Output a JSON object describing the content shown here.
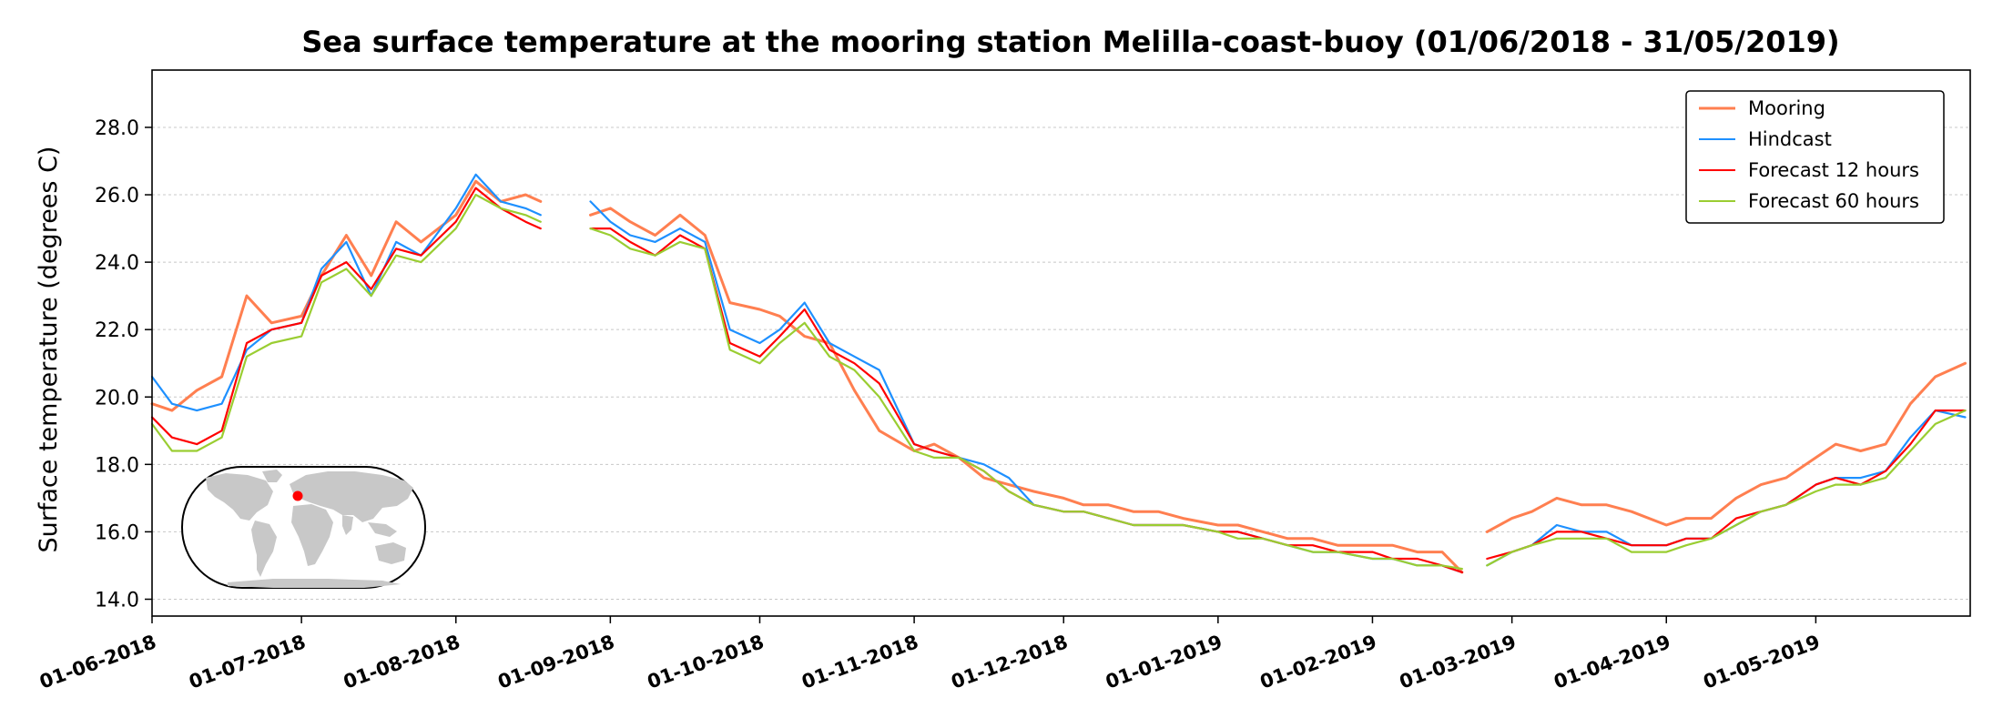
{
  "chart_data": {
    "type": "line",
    "title": "Sea surface temperature at the mooring station Melilla-coast-buoy (01/06/2018 - 31/05/2019)",
    "xlabel": "",
    "ylabel": "Surface temperature (degrees C)",
    "ylim": [
      13.5,
      29.7
    ],
    "xlim": [
      "2018-06-01",
      "2019-06-01"
    ],
    "y_ticks": [
      "14.0",
      "16.0",
      "18.0",
      "20.0",
      "22.0",
      "24.0",
      "26.0",
      "28.0"
    ],
    "x_ticks": [
      "01-06-2018",
      "01-07-2018",
      "01-08-2018",
      "01-09-2018",
      "01-10-2018",
      "01-11-2018",
      "01-12-2018",
      "01-01-2019",
      "01-02-2019",
      "01-03-2019",
      "01-04-2019",
      "01-05-2019"
    ],
    "grid": "horizontal",
    "legend_position": "top-right",
    "inset_map": "world map with red marker at Melilla",
    "series": [
      {
        "name": "Mooring",
        "color": "#ff7f50",
        "x": [
          "2018-06-01",
          "2018-06-05",
          "2018-06-10",
          "2018-06-15",
          "2018-06-20",
          "2018-06-25",
          "2018-07-01",
          "2018-07-05",
          "2018-07-10",
          "2018-07-15",
          "2018-07-20",
          "2018-07-25",
          "2018-08-01",
          "2018-08-05",
          "2018-08-10",
          "2018-08-15",
          "2018-08-18",
          null,
          "2018-08-28",
          "2018-09-01",
          "2018-09-05",
          "2018-09-10",
          "2018-09-15",
          "2018-09-20",
          "2018-09-25",
          "2018-10-01",
          "2018-10-05",
          "2018-10-10",
          "2018-10-15",
          "2018-10-20",
          "2018-10-25",
          "2018-11-01",
          "2018-11-05",
          "2018-11-10",
          "2018-11-15",
          "2018-11-20",
          "2018-11-25",
          "2018-12-01",
          "2018-12-05",
          "2018-12-10",
          "2018-12-15",
          "2018-12-20",
          "2018-12-25",
          "2019-01-01",
          "2019-01-05",
          "2019-01-10",
          "2019-01-15",
          "2019-01-20",
          "2019-01-25",
          "2019-02-01",
          "2019-02-05",
          "2019-02-10",
          "2019-02-15",
          "2019-02-19",
          null,
          "2019-02-24",
          "2019-03-01",
          "2019-03-05",
          "2019-03-10",
          "2019-03-15",
          "2019-03-20",
          "2019-03-25",
          "2019-04-01",
          "2019-04-05",
          "2019-04-10",
          "2019-04-15",
          "2019-04-20",
          "2019-04-25",
          "2019-05-01",
          "2019-05-05",
          "2019-05-10",
          "2019-05-15",
          "2019-05-20",
          "2019-05-25",
          "2019-05-31"
        ],
        "values": [
          19.8,
          19.6,
          20.2,
          20.6,
          23.0,
          22.2,
          22.4,
          23.6,
          24.8,
          23.6,
          25.2,
          24.6,
          25.4,
          26.4,
          25.8,
          26.0,
          25.8,
          null,
          25.4,
          25.6,
          25.2,
          24.8,
          25.4,
          24.8,
          22.8,
          22.6,
          22.4,
          21.8,
          21.6,
          20.2,
          19.0,
          18.4,
          18.6,
          18.2,
          17.6,
          17.4,
          17.2,
          17.0,
          16.8,
          16.8,
          16.6,
          16.6,
          16.4,
          16.2,
          16.2,
          16.0,
          15.8,
          15.8,
          15.6,
          15.6,
          15.6,
          15.4,
          15.4,
          14.8,
          null,
          16.0,
          16.4,
          16.6,
          17.0,
          16.8,
          16.8,
          16.6,
          16.2,
          16.4,
          16.4,
          17.0,
          17.4,
          17.6,
          18.2,
          18.6,
          18.4,
          18.6,
          19.8,
          20.6,
          21.0
        ]
      },
      {
        "name": "Hindcast",
        "color": "#1e90ff",
        "x": [
          "2018-06-01",
          "2018-06-05",
          "2018-06-10",
          "2018-06-15",
          "2018-06-20",
          "2018-06-25",
          "2018-07-01",
          "2018-07-05",
          "2018-07-10",
          "2018-07-15",
          "2018-07-20",
          "2018-07-25",
          "2018-08-01",
          "2018-08-05",
          "2018-08-10",
          "2018-08-15",
          "2018-08-18",
          null,
          "2018-08-28",
          "2018-09-01",
          "2018-09-05",
          "2018-09-10",
          "2018-09-15",
          "2018-09-20",
          "2018-09-25",
          "2018-10-01",
          "2018-10-05",
          "2018-10-10",
          "2018-10-15",
          "2018-10-20",
          "2018-10-25",
          "2018-11-01",
          "2018-11-05",
          "2018-11-10",
          "2018-11-15",
          "2018-11-20",
          "2018-11-25",
          "2018-12-01",
          "2018-12-05",
          "2018-12-10",
          "2018-12-15",
          "2018-12-20",
          "2018-12-25",
          "2019-01-01",
          "2019-01-05",
          "2019-01-10",
          "2019-01-15",
          "2019-01-20",
          "2019-01-25",
          "2019-02-01",
          "2019-02-05",
          "2019-02-10",
          "2019-02-15",
          "2019-02-19",
          null,
          "2019-02-24",
          "2019-03-01",
          "2019-03-05",
          "2019-03-10",
          "2019-03-15",
          "2019-03-20",
          "2019-03-25",
          "2019-04-01",
          "2019-04-05",
          "2019-04-10",
          "2019-04-15",
          "2019-04-20",
          "2019-04-25",
          "2019-05-01",
          "2019-05-05",
          "2019-05-10",
          "2019-05-15",
          "2019-05-20",
          "2019-05-25",
          "2019-05-31"
        ],
        "values": [
          20.6,
          19.8,
          19.6,
          19.8,
          21.4,
          22.0,
          22.2,
          23.8,
          24.6,
          23.0,
          24.6,
          24.2,
          25.6,
          26.6,
          25.8,
          25.6,
          25.4,
          null,
          25.8,
          25.2,
          24.8,
          24.6,
          25.0,
          24.6,
          22.0,
          21.6,
          22.0,
          22.8,
          21.6,
          21.2,
          20.8,
          18.6,
          18.4,
          18.2,
          18.0,
          17.6,
          16.8,
          16.6,
          16.6,
          16.4,
          16.2,
          16.2,
          16.2,
          16.0,
          16.0,
          15.8,
          15.6,
          15.4,
          15.4,
          15.2,
          15.2,
          15.0,
          15.0,
          14.8,
          null,
          15.0,
          15.4,
          15.6,
          16.2,
          16.0,
          16.0,
          15.6,
          15.6,
          15.8,
          15.8,
          16.2,
          16.6,
          16.8,
          17.4,
          17.6,
          17.6,
          17.8,
          18.8,
          19.6,
          19.4
        ]
      },
      {
        "name": "Forecast 12 hours",
        "color": "#ff0000",
        "x": [
          "2018-06-01",
          "2018-06-05",
          "2018-06-10",
          "2018-06-15",
          "2018-06-20",
          "2018-06-25",
          "2018-07-01",
          "2018-07-05",
          "2018-07-10",
          "2018-07-15",
          "2018-07-20",
          "2018-07-25",
          "2018-08-01",
          "2018-08-05",
          "2018-08-10",
          "2018-08-15",
          "2018-08-18",
          null,
          "2018-08-28",
          "2018-09-01",
          "2018-09-05",
          "2018-09-10",
          "2018-09-15",
          "2018-09-20",
          "2018-09-25",
          "2018-10-01",
          "2018-10-05",
          "2018-10-10",
          "2018-10-15",
          "2018-10-20",
          "2018-10-25",
          "2018-11-01",
          "2018-11-05",
          "2018-11-10",
          "2018-11-15",
          "2018-11-20",
          "2018-11-25",
          "2018-12-01",
          "2018-12-05",
          "2018-12-10",
          "2018-12-15",
          "2018-12-20",
          "2018-12-25",
          "2019-01-01",
          "2019-01-05",
          "2019-01-10",
          "2019-01-15",
          "2019-01-20",
          "2019-01-25",
          "2019-02-01",
          "2019-02-05",
          "2019-02-10",
          "2019-02-15",
          "2019-02-19",
          null,
          "2019-02-24",
          "2019-03-01",
          "2019-03-05",
          "2019-03-10",
          "2019-03-15",
          "2019-03-20",
          "2019-03-25",
          "2019-04-01",
          "2019-04-05",
          "2019-04-10",
          "2019-04-15",
          "2019-04-20",
          "2019-04-25",
          "2019-05-01",
          "2019-05-05",
          "2019-05-10",
          "2019-05-15",
          "2019-05-20",
          "2019-05-25",
          "2019-05-31"
        ],
        "values": [
          19.4,
          18.8,
          18.6,
          19.0,
          21.6,
          22.0,
          22.2,
          23.6,
          24.0,
          23.2,
          24.4,
          24.2,
          25.2,
          26.2,
          25.6,
          25.2,
          25.0,
          null,
          25.0,
          25.0,
          24.6,
          24.2,
          24.8,
          24.4,
          21.6,
          21.2,
          21.8,
          22.6,
          21.4,
          21.0,
          20.4,
          18.6,
          18.4,
          18.2,
          17.8,
          17.2,
          16.8,
          16.6,
          16.6,
          16.4,
          16.2,
          16.2,
          16.2,
          16.0,
          16.0,
          15.8,
          15.6,
          15.6,
          15.4,
          15.4,
          15.2,
          15.2,
          15.0,
          14.8,
          null,
          15.2,
          15.4,
          15.6,
          16.0,
          16.0,
          15.8,
          15.6,
          15.6,
          15.8,
          15.8,
          16.4,
          16.6,
          16.8,
          17.4,
          17.6,
          17.4,
          17.8,
          18.6,
          19.6,
          19.6
        ]
      },
      {
        "name": "Forecast 60 hours",
        "color": "#9acd32",
        "x": [
          "2018-06-01",
          "2018-06-05",
          "2018-06-10",
          "2018-06-15",
          "2018-06-20",
          "2018-06-25",
          "2018-07-01",
          "2018-07-05",
          "2018-07-10",
          "2018-07-15",
          "2018-07-20",
          "2018-07-25",
          "2018-08-01",
          "2018-08-05",
          "2018-08-10",
          "2018-08-15",
          "2018-08-18",
          null,
          "2018-08-28",
          "2018-09-01",
          "2018-09-05",
          "2018-09-10",
          "2018-09-15",
          "2018-09-20",
          "2018-09-25",
          "2018-10-01",
          "2018-10-05",
          "2018-10-10",
          "2018-10-15",
          "2018-10-20",
          "2018-10-25",
          "2018-11-01",
          "2018-11-05",
          "2018-11-10",
          "2018-11-15",
          "2018-11-20",
          "2018-11-25",
          "2018-12-01",
          "2018-12-05",
          "2018-12-10",
          "2018-12-15",
          "2018-12-20",
          "2018-12-25",
          "2019-01-01",
          "2019-01-05",
          "2019-01-10",
          "2019-01-15",
          "2019-01-20",
          "2019-01-25",
          "2019-02-01",
          "2019-02-05",
          "2019-02-10",
          "2019-02-15",
          "2019-02-19",
          null,
          "2019-02-24",
          "2019-03-01",
          "2019-03-05",
          "2019-03-10",
          "2019-03-15",
          "2019-03-20",
          "2019-03-25",
          "2019-04-01",
          "2019-04-05",
          "2019-04-10",
          "2019-04-15",
          "2019-04-20",
          "2019-04-25",
          "2019-05-01",
          "2019-05-05",
          "2019-05-10",
          "2019-05-15",
          "2019-05-20",
          "2019-05-25",
          "2019-05-31"
        ],
        "values": [
          19.2,
          18.4,
          18.4,
          18.8,
          21.2,
          21.6,
          21.8,
          23.4,
          23.8,
          23.0,
          24.2,
          24.0,
          25.0,
          26.0,
          25.6,
          25.4,
          25.2,
          null,
          25.0,
          24.8,
          24.4,
          24.2,
          24.6,
          24.4,
          21.4,
          21.0,
          21.6,
          22.2,
          21.2,
          20.8,
          20.0,
          18.4,
          18.2,
          18.2,
          17.8,
          17.2,
          16.8,
          16.6,
          16.6,
          16.4,
          16.2,
          16.2,
          16.2,
          16.0,
          15.8,
          15.8,
          15.6,
          15.4,
          15.4,
          15.2,
          15.2,
          15.0,
          15.0,
          14.9,
          null,
          15.0,
          15.4,
          15.6,
          15.8,
          15.8,
          15.8,
          15.4,
          15.4,
          15.6,
          15.8,
          16.2,
          16.6,
          16.8,
          17.2,
          17.4,
          17.4,
          17.6,
          18.4,
          19.2,
          19.6
        ]
      }
    ]
  }
}
